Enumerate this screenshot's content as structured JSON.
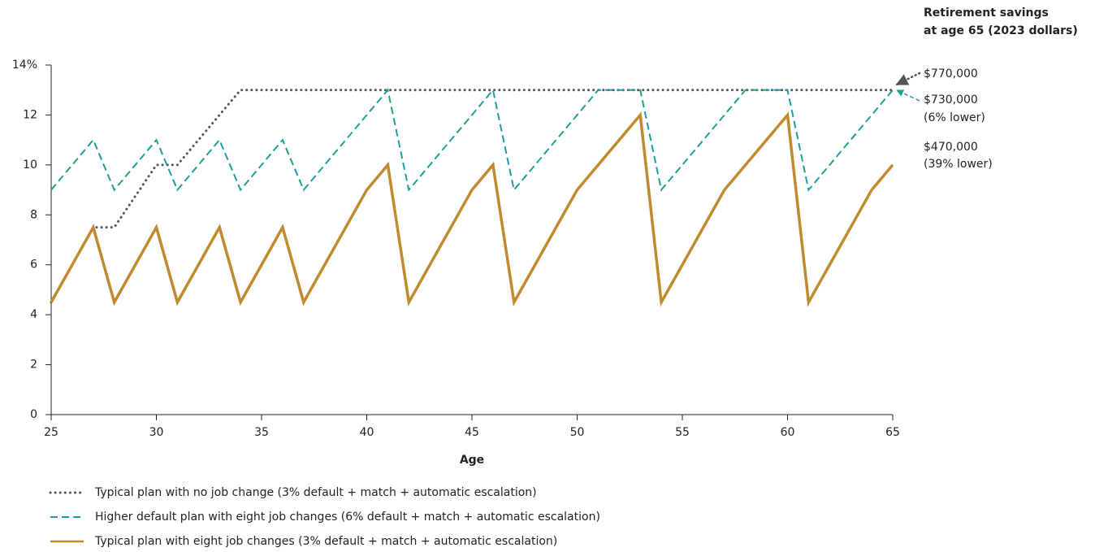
{
  "chart_data": {
    "type": "line",
    "x_label": "Age",
    "side_title": [
      "Retirement savings",
      "at age 65 (2023 dollars)"
    ],
    "end_labels": [
      [
        "$770,000"
      ],
      [
        "$730,000",
        "(6% lower)"
      ],
      [
        "$470,000",
        "(39% lower)"
      ]
    ],
    "x": [
      25,
      26,
      27,
      28,
      29,
      30,
      31,
      32,
      33,
      34,
      35,
      36,
      37,
      38,
      39,
      40,
      41,
      42,
      43,
      44,
      45,
      46,
      47,
      48,
      49,
      50,
      51,
      52,
      53,
      54,
      55,
      56,
      57,
      58,
      59,
      60,
      61,
      62,
      63,
      64,
      65
    ],
    "xlim": [
      25,
      65
    ],
    "xticks": [
      25,
      30,
      35,
      40,
      45,
      50,
      55,
      60,
      65
    ],
    "ylim": [
      0,
      14
    ],
    "yticks": [
      0,
      2,
      4,
      6,
      8,
      10,
      12,
      {
        "value": 14,
        "label": "14%"
      }
    ],
    "series": [
      {
        "name": "Typical plan with no job change (3% default + match + automatic escalation)",
        "color": "#555555",
        "dash": "dotted",
        "values": [
          4.5,
          6,
          7.5,
          7.5,
          8.75,
          10,
          10,
          11,
          12,
          13,
          13,
          13,
          13,
          13,
          13,
          13,
          13,
          13,
          13,
          13,
          13,
          13,
          13,
          13,
          13,
          13,
          13,
          13,
          13,
          13,
          13,
          13,
          13,
          13,
          13,
          13,
          13,
          13,
          13,
          13,
          13
        ]
      },
      {
        "name": "Higher default plan with eight job changes (6% default + match + automatic escalation)",
        "color": "#1f9e98",
        "dash": "dashed",
        "values": [
          9,
          10,
          11,
          9,
          10,
          11,
          9,
          10,
          11,
          9,
          10,
          11,
          9,
          10,
          11,
          12,
          13,
          9,
          10,
          11,
          12,
          13,
          9,
          10,
          11,
          12,
          13,
          13,
          13,
          9,
          10,
          11,
          12,
          13,
          13,
          13,
          9,
          10,
          11,
          12,
          13
        ]
      },
      {
        "name": "Typical plan with eight job changes (3% default + match + automatic escalation)",
        "color": "#c08a2e",
        "dash": "solid",
        "values": [
          4.5,
          6,
          7.5,
          4.5,
          6,
          7.5,
          4.5,
          6,
          7.5,
          4.5,
          6,
          7.5,
          4.5,
          6,
          7.5,
          9,
          10,
          4.5,
          6,
          7.5,
          9,
          10,
          4.5,
          6,
          7.5,
          9,
          10,
          11,
          12,
          4.5,
          6,
          7.5,
          9,
          10,
          11,
          12,
          4.5,
          6,
          7.5,
          9,
          10
        ]
      }
    ]
  }
}
